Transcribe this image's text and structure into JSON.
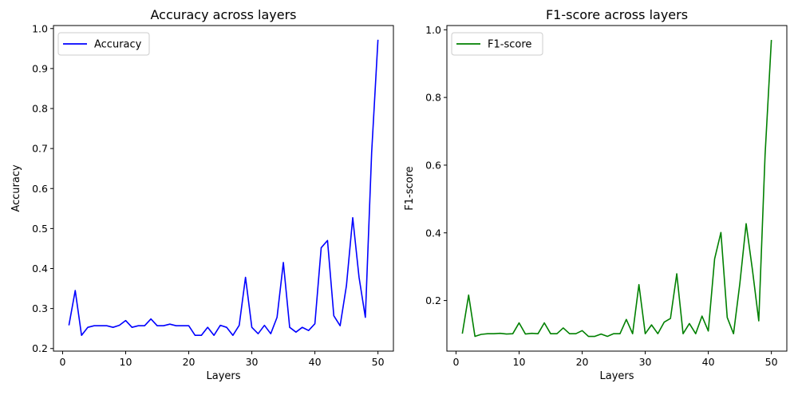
{
  "chart_data": [
    {
      "type": "line",
      "title": "Accuracy across layers",
      "xlabel": "Layers",
      "ylabel": "Accuracy",
      "xlim": [
        -1.45,
        52.45
      ],
      "ylim": [
        0.1935,
        1.0075
      ],
      "xticks": [
        0,
        10,
        20,
        30,
        40,
        50
      ],
      "yticks": [
        0.2,
        0.3,
        0.4,
        0.5,
        0.6,
        0.7,
        0.8,
        0.9,
        1.0
      ],
      "ytick_labels": [
        "0.2",
        "0.3",
        "0.4",
        "0.5",
        "0.6",
        "0.7",
        "0.8",
        "0.9",
        "1.0"
      ],
      "grid": false,
      "legend_position": "top-left",
      "color": "#0000ff",
      "series": [
        {
          "name": "Accuracy",
          "x": [
            1,
            2,
            3,
            4,
            5,
            6,
            7,
            8,
            9,
            10,
            11,
            12,
            13,
            14,
            15,
            16,
            17,
            18,
            19,
            20,
            21,
            22,
            23,
            24,
            25,
            26,
            27,
            28,
            29,
            30,
            31,
            32,
            33,
            34,
            35,
            36,
            37,
            38,
            39,
            40,
            41,
            42,
            43,
            44,
            45,
            46,
            47,
            48,
            49,
            50
          ],
          "values": [
            0.258,
            0.345,
            0.233,
            0.253,
            0.257,
            0.257,
            0.257,
            0.253,
            0.258,
            0.27,
            0.253,
            0.257,
            0.257,
            0.274,
            0.257,
            0.257,
            0.261,
            0.257,
            0.257,
            0.257,
            0.233,
            0.233,
            0.253,
            0.233,
            0.258,
            0.253,
            0.233,
            0.258,
            0.378,
            0.253,
            0.237,
            0.258,
            0.237,
            0.278,
            0.415,
            0.253,
            0.241,
            0.253,
            0.245,
            0.262,
            0.452,
            0.47,
            0.282,
            0.257,
            0.357,
            0.527,
            0.378,
            0.278,
            0.69,
            0.972
          ]
        }
      ]
    },
    {
      "type": "line",
      "title": "F1-score across layers",
      "xlabel": "Layers",
      "ylabel": "F1-score",
      "xlim": [
        -1.45,
        52.45
      ],
      "ylim": [
        0.0505,
        1.0125
      ],
      "xticks": [
        0,
        10,
        20,
        30,
        40,
        50
      ],
      "yticks": [
        0.2,
        0.4,
        0.6,
        0.8,
        1.0
      ],
      "ytick_labels": [
        "0.2",
        "0.4",
        "0.6",
        "0.8",
        "1.0"
      ],
      "grid": false,
      "legend_position": "top-left",
      "color": "#008000",
      "series": [
        {
          "name": "F1-score",
          "x": [
            1,
            2,
            3,
            4,
            5,
            6,
            7,
            8,
            9,
            10,
            11,
            12,
            13,
            14,
            15,
            16,
            17,
            18,
            19,
            20,
            21,
            22,
            23,
            24,
            25,
            26,
            27,
            28,
            29,
            30,
            31,
            32,
            33,
            34,
            35,
            36,
            37,
            38,
            39,
            40,
            41,
            42,
            43,
            44,
            45,
            46,
            47,
            48,
            49,
            50
          ],
          "values": [
            0.102,
            0.216,
            0.094,
            0.1,
            0.102,
            0.102,
            0.103,
            0.101,
            0.102,
            0.134,
            0.101,
            0.103,
            0.102,
            0.134,
            0.102,
            0.102,
            0.119,
            0.102,
            0.102,
            0.111,
            0.094,
            0.094,
            0.101,
            0.094,
            0.102,
            0.102,
            0.144,
            0.102,
            0.247,
            0.102,
            0.128,
            0.102,
            0.136,
            0.147,
            0.279,
            0.102,
            0.132,
            0.102,
            0.154,
            0.11,
            0.323,
            0.401,
            0.15,
            0.102,
            0.25,
            0.427,
            0.29,
            0.14,
            0.63,
            0.97
          ]
        }
      ]
    }
  ]
}
